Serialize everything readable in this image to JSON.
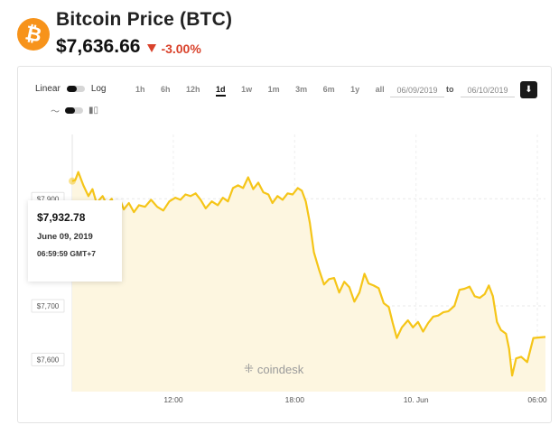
{
  "header": {
    "coin_symbol": "₿",
    "title": "Bitcoin Price (BTC)",
    "price": "$7,636.66",
    "change": "-3.00%",
    "change_color": "#d9422b",
    "logo_color": "#f7931a"
  },
  "controls": {
    "linear_label": "Linear",
    "log_label": "Log",
    "line_icon": "line-chart-icon",
    "candle_icon": "candlestick-icon",
    "ranges": [
      "1h",
      "6h",
      "12h",
      "1d",
      "1w",
      "1m",
      "3m",
      "6m",
      "1y",
      "all"
    ],
    "active_range": "1d",
    "date_from": "06/09/2019",
    "to_label": "to",
    "date_to": "06/10/2019",
    "download_icon": "download-icon"
  },
  "tooltip": {
    "price": "$7,932.78",
    "date": "June 09, 2019",
    "time": "06:59:59 GMT+7"
  },
  "watermark": "coindesk",
  "chart_data": {
    "type": "area",
    "title": "",
    "xlabel": "",
    "ylabel": "",
    "y_ticks": [
      "$7,600",
      "$7,700",
      "$7,900"
    ],
    "y_tick_values": [
      7600,
      7700,
      7900
    ],
    "x_ticks": [
      "12:00",
      "18:00",
      "10. Jun",
      "06:00"
    ],
    "x_tick_hours": [
      12,
      18,
      24,
      30
    ],
    "x_range_hours": [
      7,
      30.4
    ],
    "ylim": [
      7540,
      8020
    ],
    "grid": true,
    "line_color": "#f5c518",
    "fill_color": "#fdf6e0",
    "series": [
      {
        "values": [
          [
            7.0,
            7933
          ],
          [
            7.15,
            7935
          ],
          [
            7.3,
            7950
          ],
          [
            7.55,
            7925
          ],
          [
            7.8,
            7905
          ],
          [
            8.0,
            7918
          ],
          [
            8.2,
            7892
          ],
          [
            8.5,
            7905
          ],
          [
            8.7,
            7890
          ],
          [
            8.95,
            7900
          ],
          [
            9.15,
            7878
          ],
          [
            9.4,
            7895
          ],
          [
            9.55,
            7880
          ],
          [
            9.8,
            7892
          ],
          [
            10.05,
            7875
          ],
          [
            10.3,
            7888
          ],
          [
            10.6,
            7885
          ],
          [
            10.9,
            7898
          ],
          [
            11.2,
            7885
          ],
          [
            11.5,
            7878
          ],
          [
            11.8,
            7895
          ],
          [
            12.1,
            7902
          ],
          [
            12.35,
            7898
          ],
          [
            12.6,
            7908
          ],
          [
            12.85,
            7905
          ],
          [
            13.1,
            7910
          ],
          [
            13.35,
            7898
          ],
          [
            13.6,
            7882
          ],
          [
            13.9,
            7895
          ],
          [
            14.2,
            7888
          ],
          [
            14.45,
            7902
          ],
          [
            14.7,
            7895
          ],
          [
            14.95,
            7920
          ],
          [
            15.2,
            7925
          ],
          [
            15.45,
            7920
          ],
          [
            15.7,
            7940
          ],
          [
            15.95,
            7918
          ],
          [
            16.2,
            7930
          ],
          [
            16.45,
            7912
          ],
          [
            16.7,
            7908
          ],
          [
            16.9,
            7892
          ],
          [
            17.15,
            7905
          ],
          [
            17.4,
            7898
          ],
          [
            17.65,
            7910
          ],
          [
            17.9,
            7908
          ],
          [
            18.15,
            7920
          ],
          [
            18.35,
            7915
          ],
          [
            18.55,
            7895
          ],
          [
            18.75,
            7855
          ],
          [
            18.95,
            7800
          ],
          [
            19.2,
            7768
          ],
          [
            19.45,
            7740
          ],
          [
            19.7,
            7750
          ],
          [
            19.95,
            7752
          ],
          [
            20.2,
            7725
          ],
          [
            20.45,
            7745
          ],
          [
            20.7,
            7735
          ],
          [
            20.95,
            7708
          ],
          [
            21.2,
            7725
          ],
          [
            21.45,
            7760
          ],
          [
            21.65,
            7742
          ],
          [
            21.9,
            7738
          ],
          [
            22.15,
            7733
          ],
          [
            22.4,
            7705
          ],
          [
            22.65,
            7698
          ],
          [
            22.85,
            7668
          ],
          [
            23.05,
            7640
          ],
          [
            23.3,
            7660
          ],
          [
            23.6,
            7673
          ],
          [
            23.85,
            7660
          ],
          [
            24.1,
            7670
          ],
          [
            24.35,
            7652
          ],
          [
            24.6,
            7668
          ],
          [
            24.85,
            7680
          ],
          [
            25.1,
            7682
          ],
          [
            25.35,
            7688
          ],
          [
            25.6,
            7690
          ],
          [
            25.9,
            7700
          ],
          [
            26.15,
            7730
          ],
          [
            26.4,
            7732
          ],
          [
            26.65,
            7736
          ],
          [
            26.9,
            7718
          ],
          [
            27.15,
            7715
          ],
          [
            27.4,
            7722
          ],
          [
            27.6,
            7738
          ],
          [
            27.8,
            7718
          ],
          [
            28.0,
            7670
          ],
          [
            28.2,
            7655
          ],
          [
            28.45,
            7648
          ],
          [
            28.6,
            7620
          ],
          [
            28.75,
            7570
          ],
          [
            28.95,
            7602
          ],
          [
            29.2,
            7605
          ],
          [
            29.5,
            7595
          ],
          [
            29.8,
            7640
          ],
          [
            30.4,
            7642
          ]
        ]
      }
    ]
  }
}
